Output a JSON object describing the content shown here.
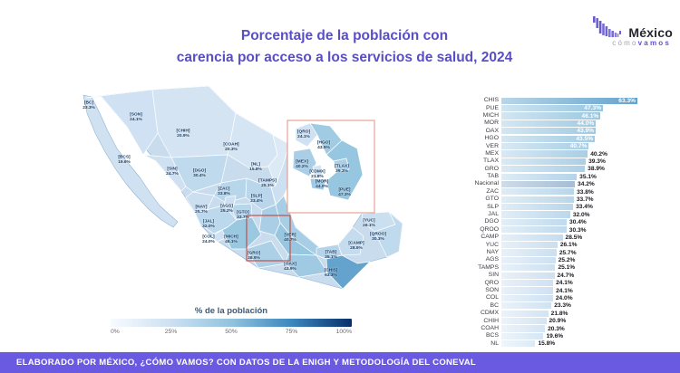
{
  "title": {
    "line1": "Porcentaje de la población con",
    "line2": "carencia por acceso a los servicios de salud, 2024"
  },
  "logo": {
    "brand": "México",
    "tagline_left": "cómo",
    "tagline_right": "vamos"
  },
  "chart_data": {
    "type": "bar",
    "orientation": "horizontal",
    "title": "Porcentaje de la población con carencia por acceso a los servicios de salud, 2024",
    "categories": [
      "CHIS",
      "PUE",
      "MICH",
      "MOR",
      "OAX",
      "HGO",
      "VER",
      "MEX",
      "TLAX",
      "GRO",
      "TAB",
      "Nacional",
      "ZAC",
      "GTO",
      "SLP",
      "JAL",
      "DGO",
      "QROO",
      "CAMP",
      "YUC",
      "NAY",
      "AGS",
      "TAMPS",
      "SIN",
      "QRO",
      "SON",
      "COL",
      "BC",
      "CDMX",
      "CHIH",
      "COAH",
      "BCS",
      "NL"
    ],
    "values": [
      63.3,
      47.3,
      46.1,
      44.0,
      43.9,
      43.5,
      40.7,
      40.2,
      39.3,
      38.9,
      35.1,
      34.2,
      33.8,
      33.7,
      33.4,
      32.0,
      30.4,
      30.3,
      28.5,
      26.1,
      25.7,
      25.2,
      25.1,
      24.7,
      24.1,
      24.1,
      24.0,
      23.3,
      21.8,
      20.9,
      20.3,
      19.6,
      15.8
    ],
    "value_suffix": "%",
    "xlim": [
      0,
      65
    ],
    "highlight_category": "Nacional",
    "legend": {
      "caption": "% de la población",
      "ticks": [
        "0%",
        "25%",
        "50%",
        "75%",
        "100%"
      ]
    }
  },
  "map": {
    "inset_states": [
      "QRO",
      "HGO",
      "MEX",
      "TLAX",
      "CDMX",
      "MOR",
      "PUE"
    ]
  },
  "footer": {
    "text": "ELABORADO POR MÉXICO, ¿CÓMO VAMOS? CON DATOS DE LA ENIGH Y METODOLOGÍA DEL CONEVAL"
  }
}
